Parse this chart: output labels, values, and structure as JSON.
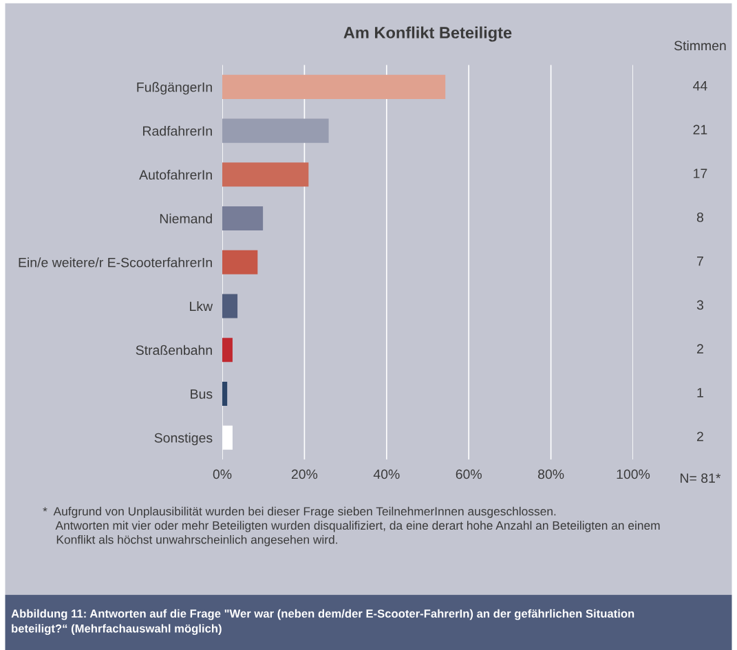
{
  "chart_data": {
    "type": "bar",
    "orientation": "horizontal",
    "title": "Am Konflikt Beteiligte",
    "categories": [
      "FußgängerIn",
      "RadfahrerIn",
      "AutofahrerIn",
      "Niemand",
      "Ein/e weitere/r E-ScooterfahrerIn",
      "Lkw",
      "Straßenbahn",
      "Bus",
      "Sonstiges"
    ],
    "values": [
      54.3,
      25.9,
      21.0,
      9.9,
      8.6,
      3.7,
      2.5,
      1.2,
      2.5
    ],
    "colors": [
      "#e0a18f",
      "#979cb0",
      "#cb6a58",
      "#777d98",
      "#c65747",
      "#4f5c7c",
      "#c0282f",
      "#2b4468",
      "#ffffff"
    ],
    "xlim": [
      0,
      100
    ],
    "xticks": [
      {
        "value": 0,
        "label": "0%"
      },
      {
        "value": 20,
        "label": "20%"
      },
      {
        "value": 40,
        "label": "40%"
      },
      {
        "value": 60,
        "label": "60%"
      },
      {
        "value": 80,
        "label": "80%"
      },
      {
        "value": 100,
        "label": "100%"
      }
    ],
    "grid": "x",
    "annotations": [
      "Stimmen",
      "N= 81*",
      "*  Aufgrund von Unplausibilität wurden bei dieser Frage sieben TeilnehmerInnen ausgeschlossen.\n    Antworten mit vier oder mehr Beteiligten wurden disqualifiziert, da eine derart hohe Anzahl an Beteiligten an einem\n    Konflikt als höchst unwahrscheinlich angesehen wird.",
      "Abbildung 11: Antworten auf die Frage \"Wer war (neben dem/der E-Scooter-FahrerIn) an der gefährlichen Situation\nbeteiligt?“ (Mehrfachauswahl möglich)",
      "44",
      "21",
      "17",
      "8",
      "7",
      "3",
      "2",
      "1",
      "2"
    ]
  }
}
